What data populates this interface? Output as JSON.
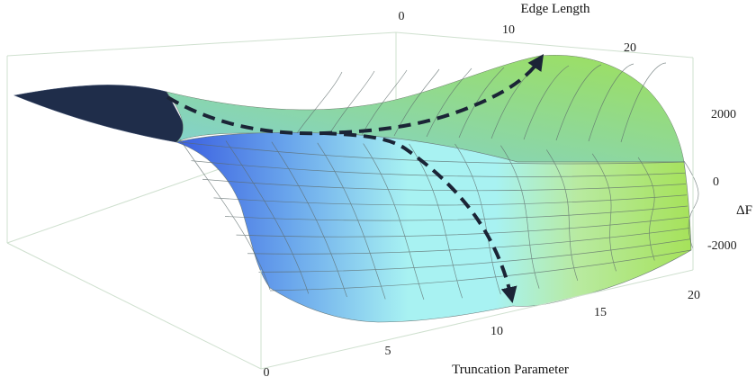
{
  "chart_data": {
    "type": "surface",
    "axes": {
      "edge_length": {
        "label": "Edge Length",
        "ticks": [
          "0",
          "10",
          "20"
        ],
        "range": [
          0,
          22
        ]
      },
      "truncation_parameter": {
        "label": "Truncation Parameter",
        "ticks": [
          "0",
          "5",
          "10",
          "15",
          "20"
        ],
        "range": [
          0,
          21
        ]
      },
      "z": {
        "label": "ΔF",
        "ticks": [
          "2000",
          "0",
          "-2000"
        ],
        "range": [
          -3000,
          3000
        ]
      }
    },
    "surface": {
      "description_points": [
        {
          "edge_length": 0,
          "truncation_parameter": 0,
          "z": 1800
        },
        {
          "edge_length": 10,
          "truncation_parameter": 10,
          "z": 600
        },
        {
          "edge_length": 20,
          "truncation_parameter": 0,
          "z": 2600
        },
        {
          "edge_length": 20,
          "truncation_parameter": 20,
          "z": -900
        },
        {
          "edge_length": 0,
          "truncation_parameter": 20,
          "z": -2800
        }
      ]
    },
    "paths": [
      {
        "name": "",
        "style": "dashed-arrow"
      },
      {
        "name": "",
        "style": "dashed-arrow"
      }
    ],
    "colors": {
      "surface_low": "#3a5ee0",
      "surface_mid": "#a8f2f2",
      "surface_high": "#a6e25a",
      "surface_dark": "#1f2d4a",
      "grid_line": "#5c6a6a",
      "path": "#1b2436"
    }
  }
}
